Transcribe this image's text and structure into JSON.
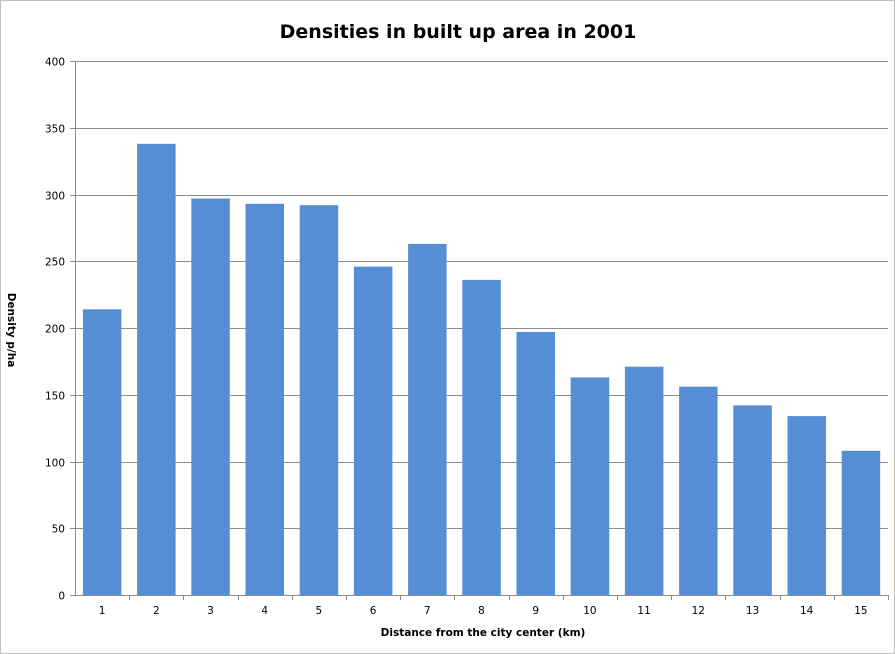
{
  "chart_data": {
    "type": "bar",
    "title": "Densities in built up area in 2001",
    "xlabel": "Distance from the city center (km)",
    "ylabel": "Density p/ha",
    "categories": [
      "1",
      "2",
      "3",
      "4",
      "5",
      "6",
      "7",
      "8",
      "9",
      "10",
      "11",
      "12",
      "13",
      "14",
      "15"
    ],
    "values": [
      214,
      338,
      297,
      293,
      292,
      246,
      263,
      236,
      197,
      163,
      171,
      156,
      142,
      134,
      108
    ],
    "ylim": [
      0,
      400
    ],
    "yticks": [
      "0",
      "50",
      "100",
      "150",
      "200",
      "250",
      "300",
      "350",
      "400"
    ],
    "grid": true,
    "legend": "none",
    "bar_color": "#558ED5"
  }
}
